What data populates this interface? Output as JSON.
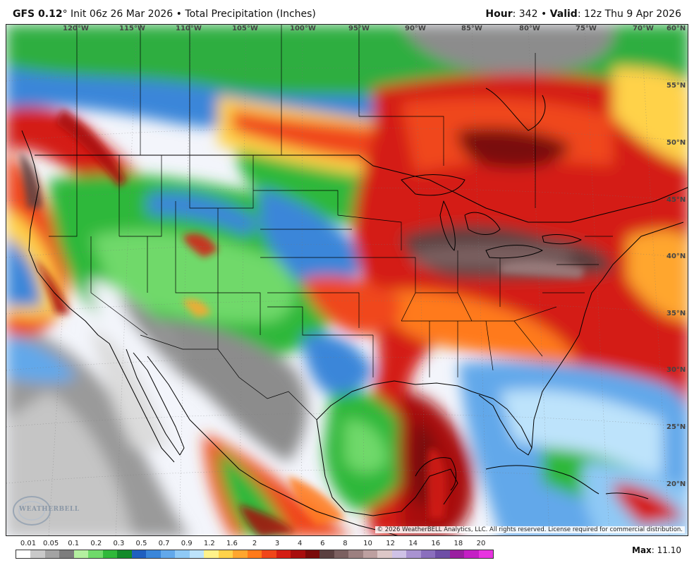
{
  "header": {
    "model": "GFS 0.12",
    "degree": "°",
    "init": " Init 06z 26 Mar 2026",
    "bullet": " • ",
    "product": "Total Precipitation (Inches)",
    "hour_label": "Hour",
    "hour_value": ": 342",
    "valid_label": "Valid",
    "valid_value": ": 12z Thu 9 Apr 2026"
  },
  "longitude_labels": [
    "120°W",
    "115°W",
    "110°W",
    "105°W",
    "100°W",
    "95°W",
    "90°W",
    "85°W",
    "80°W",
    "75°W",
    "70°W"
  ],
  "latitude_labels": [
    "60°N",
    "55°N",
    "50°N",
    "45°N",
    "40°N",
    "35°N",
    "30°N",
    "25°N",
    "20°N"
  ],
  "copyright": "© 2026 WeatherBELL Analytics, LLC. All rights reserved. License required for commercial distribution.",
  "logo": {
    "text": "WEATHERBELL",
    "icon": "weatherbell-logo-icon"
  },
  "legend": {
    "labels": [
      "0.01",
      "0.05",
      "0.1",
      "0.2",
      "0.3",
      "0.5",
      "0.7",
      "0.9",
      "1.2",
      "1.6",
      "2",
      "3",
      "4",
      "6",
      "8",
      "10",
      "12",
      "14",
      "16",
      "18",
      "20"
    ],
    "colors": [
      "#ffffff",
      "#c9c9c9",
      "#a3a3a3",
      "#7d7d7d",
      "#b4f0a0",
      "#6fd96a",
      "#2fb83a",
      "#138a2a",
      "#1f5fbf",
      "#3a86d9",
      "#62a8ea",
      "#8fc9f5",
      "#bde3fb",
      "#fff28a",
      "#ffd24a",
      "#ffa62e",
      "#ff7a1a",
      "#f0461a",
      "#d41e14",
      "#a80e0e",
      "#7a0a0a",
      "#5a4040",
      "#7b6060",
      "#9c8080",
      "#bda0a0",
      "#ddc8c8",
      "#cfc2e6",
      "#a993d1",
      "#8a6fbd",
      "#6e4fa6",
      "#9a1fa0",
      "#c41fc4",
      "#e833e0"
    ]
  },
  "max": {
    "label": "Max",
    "value": ": 11.10"
  }
}
